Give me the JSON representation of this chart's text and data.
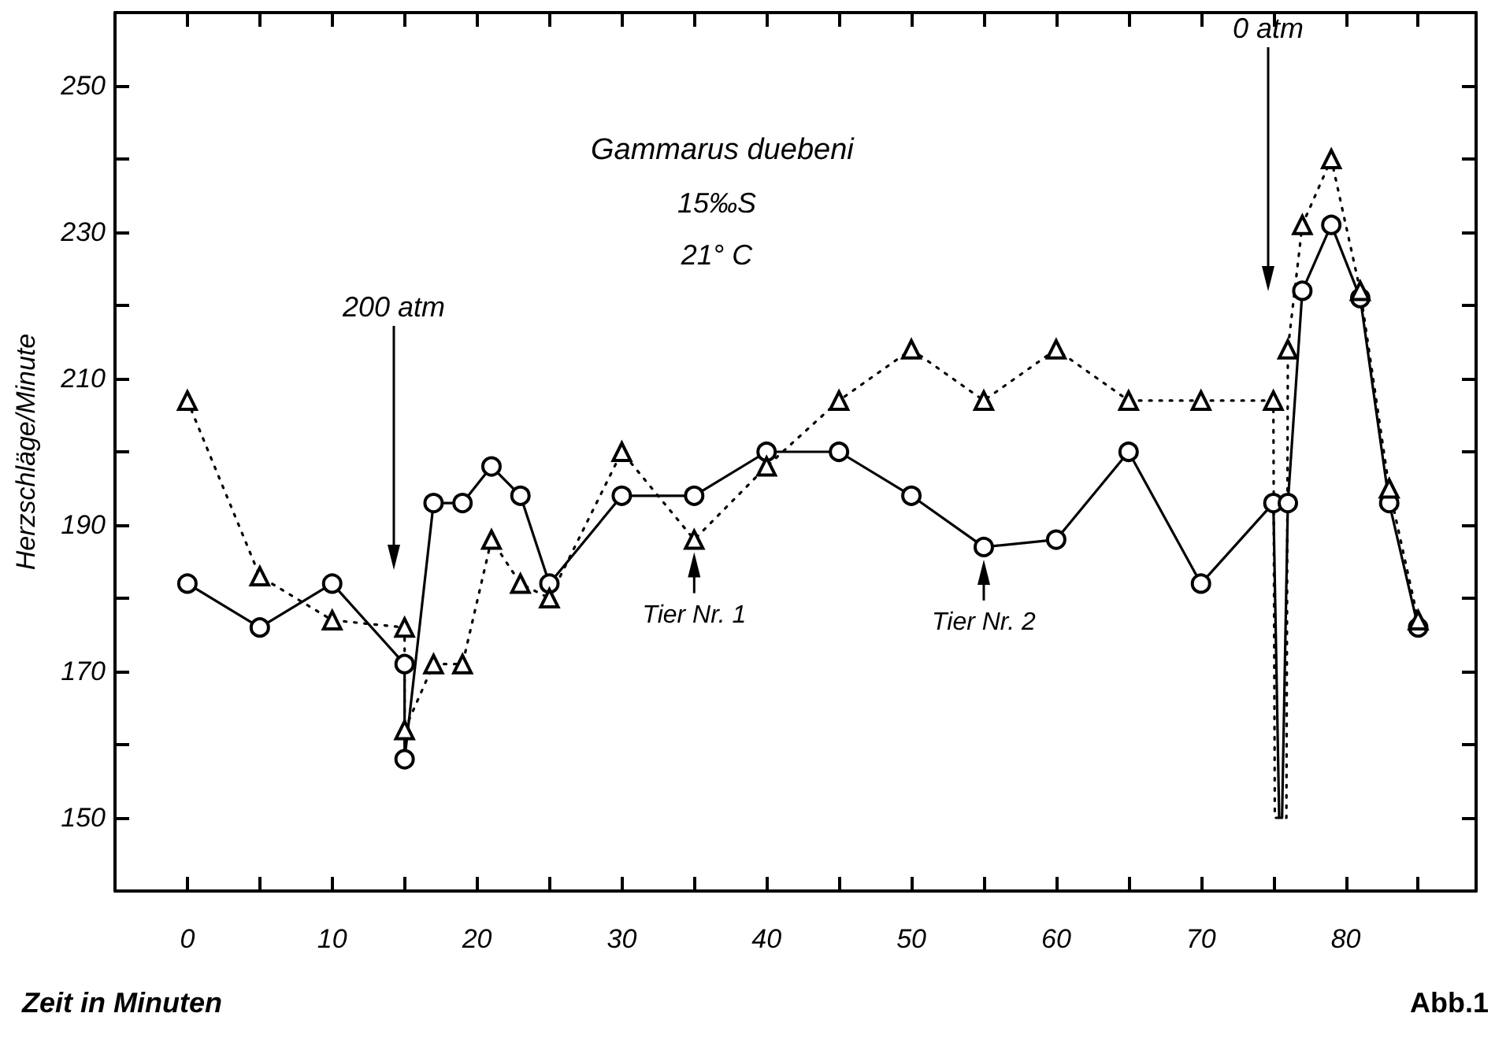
{
  "chart_data": {
    "type": "line",
    "title": "Gammarus duebeni",
    "xlabel": "Zeit in Minuten",
    "ylabel": "Herzschläge/Minute",
    "annotations": [
      "15‰S",
      "21° C",
      "200 atm",
      "0 atm",
      "Abb.1",
      {
        "text": "Tier Nr. 1",
        "x": 35,
        "y": 188
      },
      {
        "text": "Tier Nr. 2",
        "x": 55,
        "y": 187
      }
    ],
    "xlim": [
      -5,
      89
    ],
    "xticks": [
      0,
      {
        "value": 5,
        "label": null
      },
      10,
      {
        "value": 15,
        "label": null
      },
      20,
      {
        "value": 25,
        "label": null
      },
      30,
      {
        "value": 35,
        "label": null
      },
      40,
      {
        "value": 45,
        "label": null
      },
      50,
      {
        "value": 55,
        "label": null
      },
      60,
      {
        "value": 65,
        "label": null
      },
      70,
      {
        "value": 75,
        "label": null
      },
      80,
      {
        "value": 85,
        "label": null
      }
    ],
    "ylim": [
      140,
      260
    ],
    "yticks": [
      150,
      {
        "value": 160,
        "label": null
      },
      170,
      {
        "value": 180,
        "label": null
      },
      190,
      {
        "value": 200,
        "label": null
      },
      210,
      {
        "value": 220,
        "label": null
      },
      230,
      {
        "value": 240,
        "label": null
      },
      250
    ],
    "series": [
      {
        "color": "#000000",
        "marker": "circle",
        "line_style": "solid",
        "x": [
          0,
          5,
          10,
          15,
          15,
          17,
          19,
          21,
          23,
          25,
          30,
          35,
          40,
          45,
          50,
          55,
          60,
          65,
          70,
          75,
          75.4,
          75.6,
          76,
          77,
          79,
          81,
          83,
          85
        ],
        "values": [
          182,
          176,
          182,
          171,
          158,
          193,
          193,
          198,
          194,
          182,
          194,
          194,
          200,
          200,
          194,
          187,
          188,
          200,
          182,
          193,
          150,
          150,
          193,
          222,
          231,
          221,
          193,
          176
        ]
      },
      {
        "color": "#000000",
        "marker": "triangle",
        "line_style": "dotted",
        "x": [
          0,
          5,
          10,
          15,
          15,
          17,
          19,
          21,
          23,
          25,
          30,
          35,
          40,
          45,
          50,
          55,
          60,
          65,
          70,
          75,
          75.1,
          75.9,
          76,
          77,
          79,
          81,
          83,
          85
        ],
        "values": [
          207,
          183,
          177,
          176,
          162,
          171,
          171,
          188,
          182,
          180,
          200,
          188,
          198,
          207,
          214,
          207,
          214,
          207,
          207,
          207,
          150,
          150,
          214,
          231,
          240,
          222,
          195,
          177
        ]
      }
    ]
  }
}
